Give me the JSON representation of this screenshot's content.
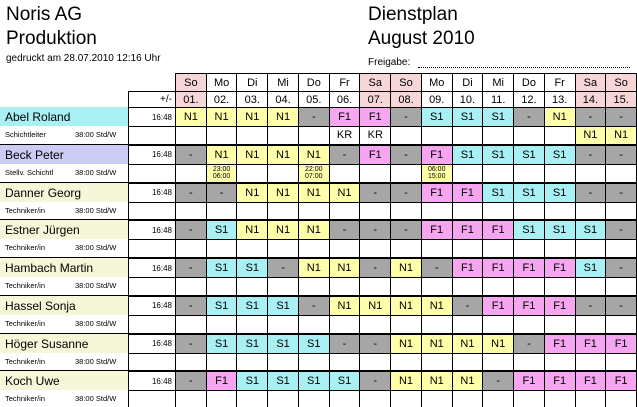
{
  "header": {
    "company": "Noris AG",
    "department": "Produktion",
    "printed": "gedruckt am 28.07.2010  12:16 Uhr",
    "title": "Dienstplan",
    "month": "August 2010",
    "approval": "Freigabe:"
  },
  "table": {
    "balance_header": "+/-",
    "days": [
      "So",
      "Mo",
      "Di",
      "Mi",
      "Do",
      "Fr",
      "Sa",
      "So",
      "Mo",
      "Di",
      "Mi",
      "Do",
      "Fr",
      "Sa",
      "So"
    ],
    "dates": [
      "01.",
      "02.",
      "03.",
      "04.",
      "05.",
      "06.",
      "07.",
      "08.",
      "09.",
      "10.",
      "11.",
      "12.",
      "13.",
      "14.",
      "15."
    ],
    "day_colors": [
      "#f6d6d6",
      "#ffffff",
      "#ffffff",
      "#ffffff",
      "#ffffff",
      "#ffffff",
      "#f6d6d6",
      "#f6d6d6",
      "#ffffff",
      "#ffffff",
      "#ffffff",
      "#ffffff",
      "#ffffff",
      "#f6d6d6",
      "#f6d6d6"
    ],
    "shift_colors": {
      "N1": "#ffffaa",
      "S1": "#a8f0f4",
      "F1": "#f6a6f0",
      "-": "#a6a6a6",
      "KR": "#ffffff"
    },
    "employees": [
      {
        "name": "Abel Roland",
        "role": "Schichtleiter",
        "hours": "38:00 Std/W",
        "balance": "16:48",
        "name_color": "#a8f0f4",
        "shifts": [
          "N1",
          "N1",
          "N1",
          "N1",
          "-",
          "F1",
          "F1",
          "-",
          "S1",
          "S1",
          "S1",
          "-",
          "N1",
          "-",
          "-"
        ],
        "notes": [
          null,
          null,
          null,
          null,
          null,
          "KR",
          "KR",
          null,
          null,
          null,
          null,
          null,
          null,
          "N1",
          "N1"
        ]
      },
      {
        "name": "Beck Peter",
        "role": "Stellv. Schichtl",
        "hours": "38:00 Std/W",
        "balance": "16:48",
        "name_color": "#ccccf4",
        "shifts": [
          "-",
          "N1",
          "N1",
          "N1",
          "N1",
          "-",
          "F1",
          "-",
          "F1",
          "S1",
          "S1",
          "S1",
          "S1",
          "-",
          "-"
        ],
        "notes": [
          null,
          [
            "23:00",
            "06:00"
          ],
          null,
          null,
          [
            "22:00",
            "07:00"
          ],
          null,
          null,
          null,
          [
            "06:00",
            "15:00"
          ],
          null,
          null,
          null,
          null,
          null,
          null
        ]
      },
      {
        "name": "Danner Georg",
        "role": "Techniker/in",
        "hours": "38:00 Std/W",
        "balance": "16:48",
        "name_color": "#f6f6d8",
        "shifts": [
          "-",
          "-",
          "N1",
          "N1",
          "N1",
          "N1",
          "-",
          "-",
          "F1",
          "F1",
          "S1",
          "S1",
          "S1",
          "-",
          "-"
        ]
      },
      {
        "name": "Estner Jürgen",
        "role": "Techniker/in",
        "hours": "38:00 Std/W",
        "balance": "16:48",
        "name_color": "#f6f6d8",
        "shifts": [
          "-",
          "S1",
          "N1",
          "N1",
          "N1",
          "-",
          "-",
          "-",
          "F1",
          "F1",
          "F1",
          "S1",
          "S1",
          "S1",
          "-"
        ]
      },
      {
        "name": "Hambach Martin",
        "role": "Techniker/in",
        "hours": "38:00 Std/W",
        "balance": "16:48",
        "name_color": "#f6f6d8",
        "shifts": [
          "-",
          "S1",
          "S1",
          "-",
          "N1",
          "N1",
          "-",
          "N1",
          "-",
          "F1",
          "F1",
          "F1",
          "F1",
          "S1",
          "-"
        ]
      },
      {
        "name": "Hassel Sonja",
        "role": "Techniker/in",
        "hours": "38:00 Std/W",
        "balance": "16:48",
        "name_color": "#f6f6d8",
        "shifts": [
          "-",
          "S1",
          "S1",
          "S1",
          "-",
          "N1",
          "N1",
          "N1",
          "N1",
          "-",
          "F1",
          "F1",
          "F1",
          "-",
          "-"
        ]
      },
      {
        "name": "Höger Susanne",
        "role": "Techniker/in",
        "hours": "38:00 Std/W",
        "balance": "16:48",
        "name_color": "#f6f6d8",
        "shifts": [
          "-",
          "S1",
          "S1",
          "S1",
          "S1",
          "-",
          "-",
          "N1",
          "N1",
          "N1",
          "N1",
          "-",
          "F1",
          "F1",
          "F1"
        ]
      },
      {
        "name": "Koch Uwe",
        "role": "Techniker/in",
        "hours": "38:00 Std/W",
        "balance": "16:48",
        "name_color": "#f6f6d8",
        "shifts": [
          "-",
          "F1",
          "S1",
          "S1",
          "S1",
          "S1",
          "-",
          "N1",
          "N1",
          "N1",
          "-",
          "F1",
          "F1",
          "F1",
          "F1"
        ]
      }
    ]
  }
}
